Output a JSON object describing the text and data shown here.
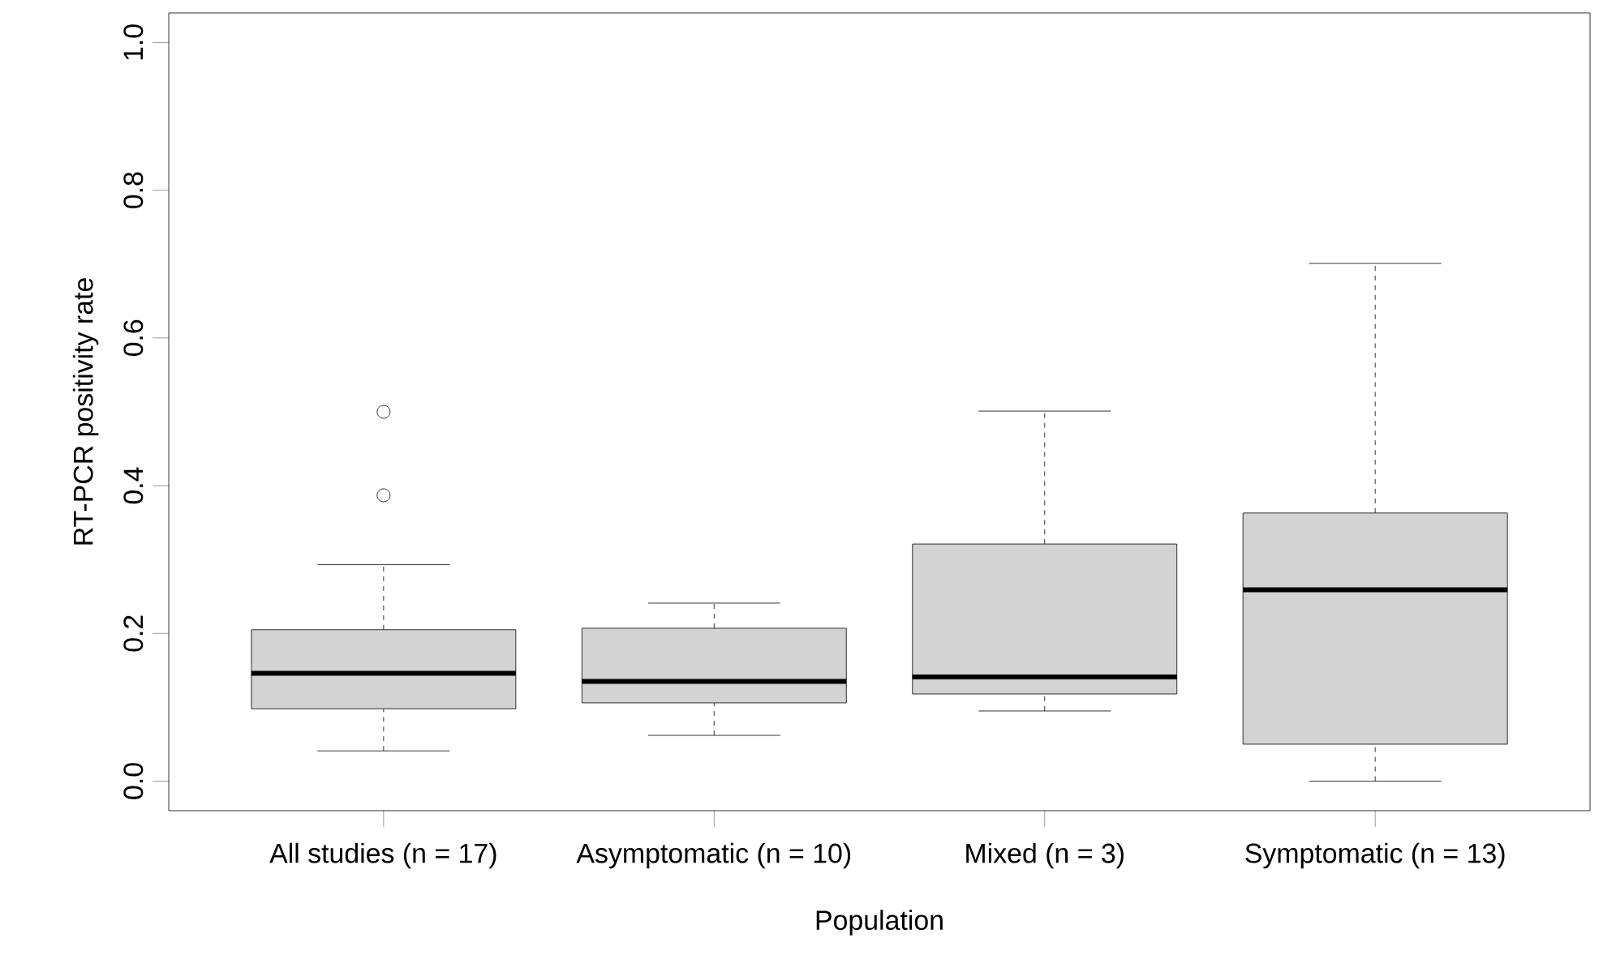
{
  "chart_data": {
    "type": "box",
    "xlabel": "Population",
    "ylabel": "RT-PCR positivity rate",
    "categories": [
      "All studies (n = 17)",
      "Asymptomatic (n = 10)",
      "Mixed (n = 3)",
      "Symptomatic (n = 13)"
    ],
    "series": [
      {
        "color": "#d3d3d3",
        "boxes": [
          {
            "low": 0.041,
            "q1": 0.098,
            "median": 0.146,
            "q3": 0.205,
            "high": 0.293,
            "outliers": [
              0.387,
              0.5
            ]
          },
          {
            "low": 0.062,
            "q1": 0.106,
            "median": 0.135,
            "q3": 0.207,
            "high": 0.241
          },
          {
            "low": 0.095,
            "q1": 0.118,
            "median": 0.141,
            "q3": 0.321,
            "high": 0.501
          },
          {
            "low": 0.0,
            "q1": 0.05,
            "median": 0.259,
            "q3": 0.363,
            "high": 0.701
          }
        ]
      }
    ],
    "ylim": [
      -0.04,
      1.04
    ],
    "yticks": [
      {
        "value": 0,
        "label": "0.0"
      },
      {
        "value": 0.2,
        "label": "0.2"
      },
      {
        "value": 0.4,
        "label": "0.4"
      },
      {
        "value": 0.6,
        "label": "0.6"
      },
      {
        "value": 0.8,
        "label": "0.8"
      },
      {
        "value": 1.0,
        "label": "1.0"
      }
    ],
    "grid": false
  }
}
